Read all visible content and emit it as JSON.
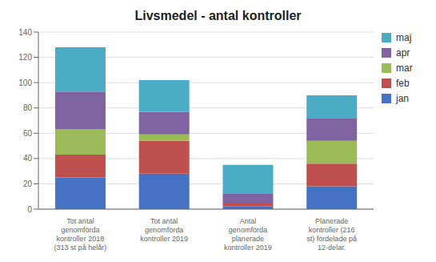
{
  "chart_data": {
    "type": "bar",
    "title": "Livsmedel - antal kontroller",
    "categories": [
      "Tot antal\ngenomförda\nkontroller 2018\n(313 st på helår)",
      "Tot antal\ngenomförda\nkontroller 2019",
      "Antal\ngenomförda\nplanerade\nkontroller 2019",
      "Planerade\nkontroller (216\nst) fördelade på\n12-delar."
    ],
    "series": [
      {
        "name": "jan",
        "color": "#4472C4",
        "values": [
          25,
          28,
          2,
          18
        ]
      },
      {
        "name": "feb",
        "color": "#C0504D",
        "values": [
          18,
          26,
          3,
          18
        ]
      },
      {
        "name": "mar",
        "color": "#9BBB59",
        "values": [
          20,
          5,
          0,
          18
        ]
      },
      {
        "name": "apr",
        "color": "#8064A2",
        "values": [
          30,
          18,
          7,
          18
        ]
      },
      {
        "name": "maj",
        "color": "#4BACC6",
        "values": [
          35,
          25,
          23,
          18
        ]
      }
    ],
    "ylim": [
      0,
      140
    ],
    "yticks": [
      0,
      20,
      40,
      60,
      80,
      100,
      120,
      140
    ],
    "stacked": true,
    "grid": true,
    "legend": "right"
  }
}
